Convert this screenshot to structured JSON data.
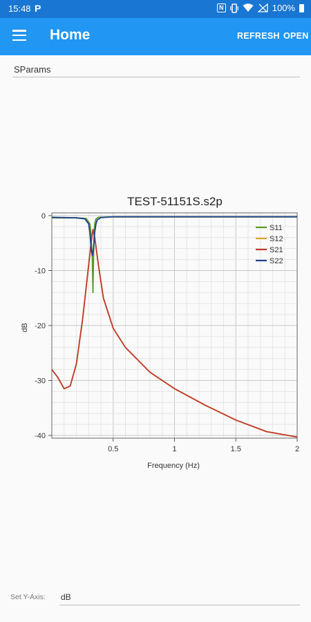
{
  "status_bar": {
    "time": "15:48",
    "app_glyph": "P",
    "nfc_glyph": "N",
    "battery": "100%"
  },
  "app_bar": {
    "title": "Home",
    "refresh_label": "REFRESH",
    "open_label": "OPEN"
  },
  "sparams_field": {
    "value": "SParams"
  },
  "yaxis_setting": {
    "label": "Set Y-Axis:",
    "value": "dB"
  },
  "chart_data": {
    "type": "line",
    "title": "TEST-51151S.s2p",
    "xlabel": "Frequency (Hz)",
    "ylabel": "dB",
    "xlim": [
      0,
      2
    ],
    "ylim": [
      -40.5,
      0.5
    ],
    "x_ticks": [
      0.5,
      1,
      1.5,
      2
    ],
    "x_tick_labels": [
      "0.5",
      "1",
      "1.5",
      "2"
    ],
    "y_ticks": [
      0,
      -10,
      -20,
      -30,
      -40
    ],
    "y_tick_labels": [
      "0",
      "-10",
      "-20",
      "-30",
      "-40"
    ],
    "grid": true,
    "legend_position": "top-right",
    "series": [
      {
        "name": "S11",
        "color": "#5a9a23",
        "x": [
          0.0,
          0.1,
          0.2,
          0.28,
          0.31,
          0.32,
          0.33,
          0.335,
          0.34,
          0.345,
          0.35,
          0.36,
          0.38,
          0.45,
          1.0,
          1.5,
          2.0
        ],
        "y": [
          -0.4,
          -0.4,
          -0.4,
          -0.5,
          -1.5,
          -3.5,
          -8,
          -14,
          -8,
          -3.5,
          -1.5,
          -0.6,
          -0.3,
          -0.25,
          -0.25,
          -0.25,
          -0.25
        ]
      },
      {
        "name": "S12",
        "color": "#e0a52c",
        "x": [
          0.0,
          0.05,
          0.1,
          0.15,
          0.2,
          0.25,
          0.3,
          0.32,
          0.335,
          0.35,
          0.38,
          0.42,
          0.5,
          0.6,
          0.8,
          1.0,
          1.25,
          1.5,
          1.75,
          2.0
        ],
        "y": [
          -28,
          -29.5,
          -31.5,
          -31,
          -27,
          -19,
          -9,
          -5,
          -2.5,
          -4,
          -9,
          -15,
          -20.5,
          -24,
          -28.5,
          -31.5,
          -34.5,
          -37.2,
          -39.3,
          -40.3
        ]
      },
      {
        "name": "S21",
        "color": "#c0392b",
        "x": [
          0.0,
          0.05,
          0.1,
          0.15,
          0.2,
          0.25,
          0.3,
          0.32,
          0.335,
          0.35,
          0.38,
          0.42,
          0.5,
          0.6,
          0.8,
          1.0,
          1.25,
          1.5,
          1.75,
          2.0
        ],
        "y": [
          -28,
          -29.5,
          -31.5,
          -31,
          -27,
          -19,
          -9,
          -5,
          -2.5,
          -4,
          -9,
          -15,
          -20.5,
          -24,
          -28.5,
          -31.5,
          -34.5,
          -37.2,
          -39.3,
          -40.3
        ]
      },
      {
        "name": "S22",
        "color": "#1f3e8c",
        "x": [
          0.0,
          0.1,
          0.2,
          0.27,
          0.3,
          0.31,
          0.32,
          0.33,
          0.34,
          0.35,
          0.36,
          0.37,
          0.4,
          0.5,
          1.0,
          1.5,
          2.0
        ],
        "y": [
          -0.3,
          -0.35,
          -0.4,
          -0.6,
          -1.5,
          -3,
          -6,
          -7.3,
          -6,
          -3,
          -1.5,
          -0.8,
          -0.35,
          -0.2,
          -0.2,
          -0.2,
          -0.2
        ]
      }
    ]
  }
}
